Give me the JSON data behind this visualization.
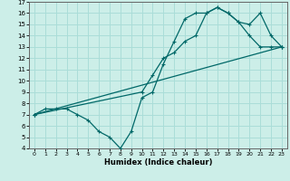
{
  "xlabel": "Humidex (Indice chaleur)",
  "bg_color": "#cceee8",
  "grid_color": "#aaddd8",
  "line_color": "#006868",
  "xlim": [
    -0.5,
    23.5
  ],
  "ylim": [
    4,
    17
  ],
  "xticks": [
    0,
    1,
    2,
    3,
    4,
    5,
    6,
    7,
    8,
    9,
    10,
    11,
    12,
    13,
    14,
    15,
    16,
    17,
    18,
    19,
    20,
    21,
    22,
    23
  ],
  "yticks": [
    4,
    5,
    6,
    7,
    8,
    9,
    10,
    11,
    12,
    13,
    14,
    15,
    16,
    17
  ],
  "line1_x": [
    0,
    1,
    2,
    3,
    4,
    5,
    6,
    7,
    8,
    9,
    10,
    11,
    12,
    13,
    14,
    15,
    16,
    17,
    18,
    19,
    20,
    21,
    22,
    23
  ],
  "line1_y": [
    7.0,
    7.5,
    7.5,
    7.5,
    7.0,
    6.5,
    5.5,
    5.0,
    4.0,
    5.5,
    8.5,
    9.0,
    11.5,
    13.5,
    15.5,
    16.0,
    16.0,
    16.5,
    16.0,
    15.2,
    14.0,
    13.0,
    13.0,
    13.0
  ],
  "line2_x": [
    0,
    23
  ],
  "line2_y": [
    7.0,
    13.0
  ],
  "line3_x": [
    0,
    10,
    11,
    12,
    13,
    14,
    15,
    16,
    17,
    18,
    19,
    20,
    21,
    22,
    23
  ],
  "line3_y": [
    7.0,
    9.0,
    10.5,
    12.0,
    12.5,
    13.5,
    14.0,
    16.0,
    16.5,
    16.0,
    15.2,
    15.0,
    16.0,
    14.0,
    13.0
  ]
}
